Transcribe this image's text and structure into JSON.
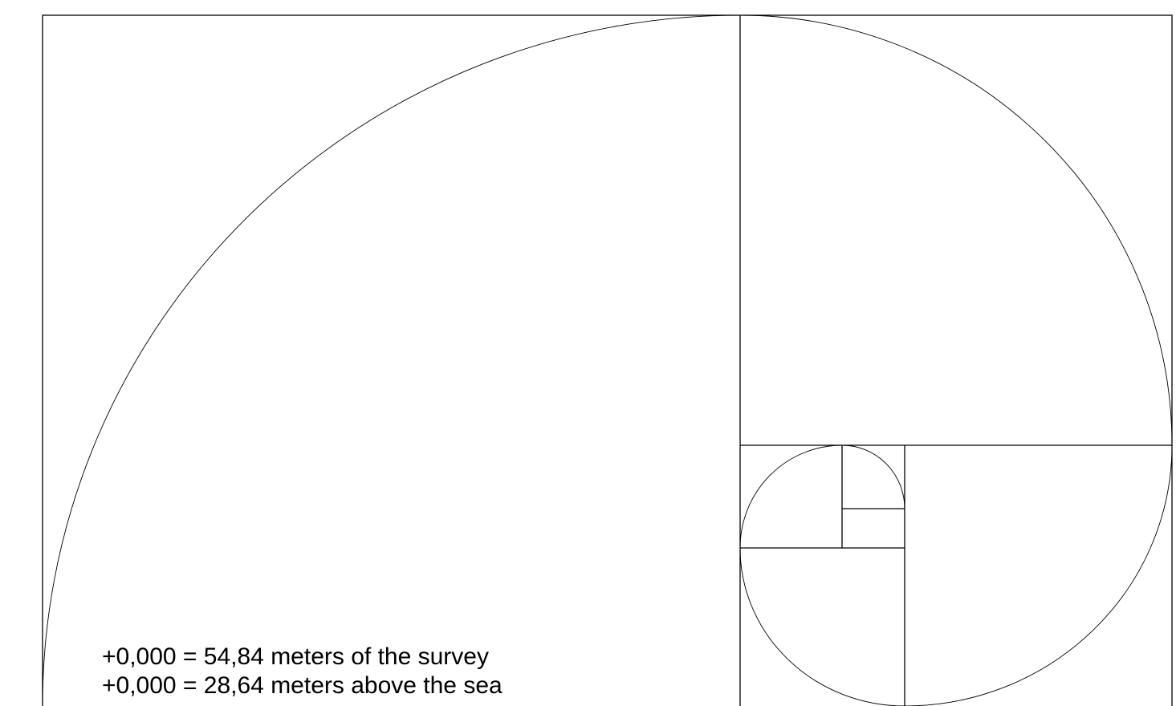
{
  "notes": {
    "line1": "+0,000 = 54,84 meters of the survey",
    "line2": "+0,000 = 28,64 meters above the sea"
  },
  "colors": {
    "background": "#ffffff",
    "line": "#000000"
  }
}
